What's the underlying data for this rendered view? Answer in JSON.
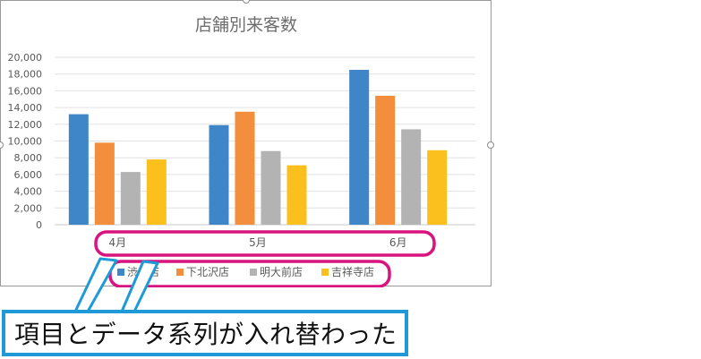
{
  "chart_data": {
    "type": "bar",
    "title": "店舗別来客数",
    "categories": [
      "4月",
      "5月",
      "6月"
    ],
    "series": [
      {
        "name": "渋谷店",
        "color": "#3F86C8",
        "values": [
          13200,
          11900,
          18500
        ]
      },
      {
        "name": "下北沢店",
        "color": "#F28E3C",
        "values": [
          9800,
          13500,
          15400
        ]
      },
      {
        "name": "明大前店",
        "color": "#B3B3B3",
        "values": [
          6300,
          8800,
          11400
        ]
      },
      {
        "name": "吉祥寺店",
        "color": "#FBBF1E",
        "values": [
          7800,
          7100,
          8900
        ]
      }
    ],
    "ylim": [
      0,
      20000
    ],
    "yticks": [
      "20,000",
      "18,000",
      "16,000",
      "14,000",
      "12,000",
      "10,000",
      "8,000",
      "6,000",
      "4,000",
      "2,000",
      "0"
    ],
    "grid": true,
    "legend": "bottom"
  },
  "annotation": {
    "text": "項目とデータ系列が入れ替わった",
    "highlight_color": "#D9137F",
    "callout_color": "#1F9AD6"
  }
}
